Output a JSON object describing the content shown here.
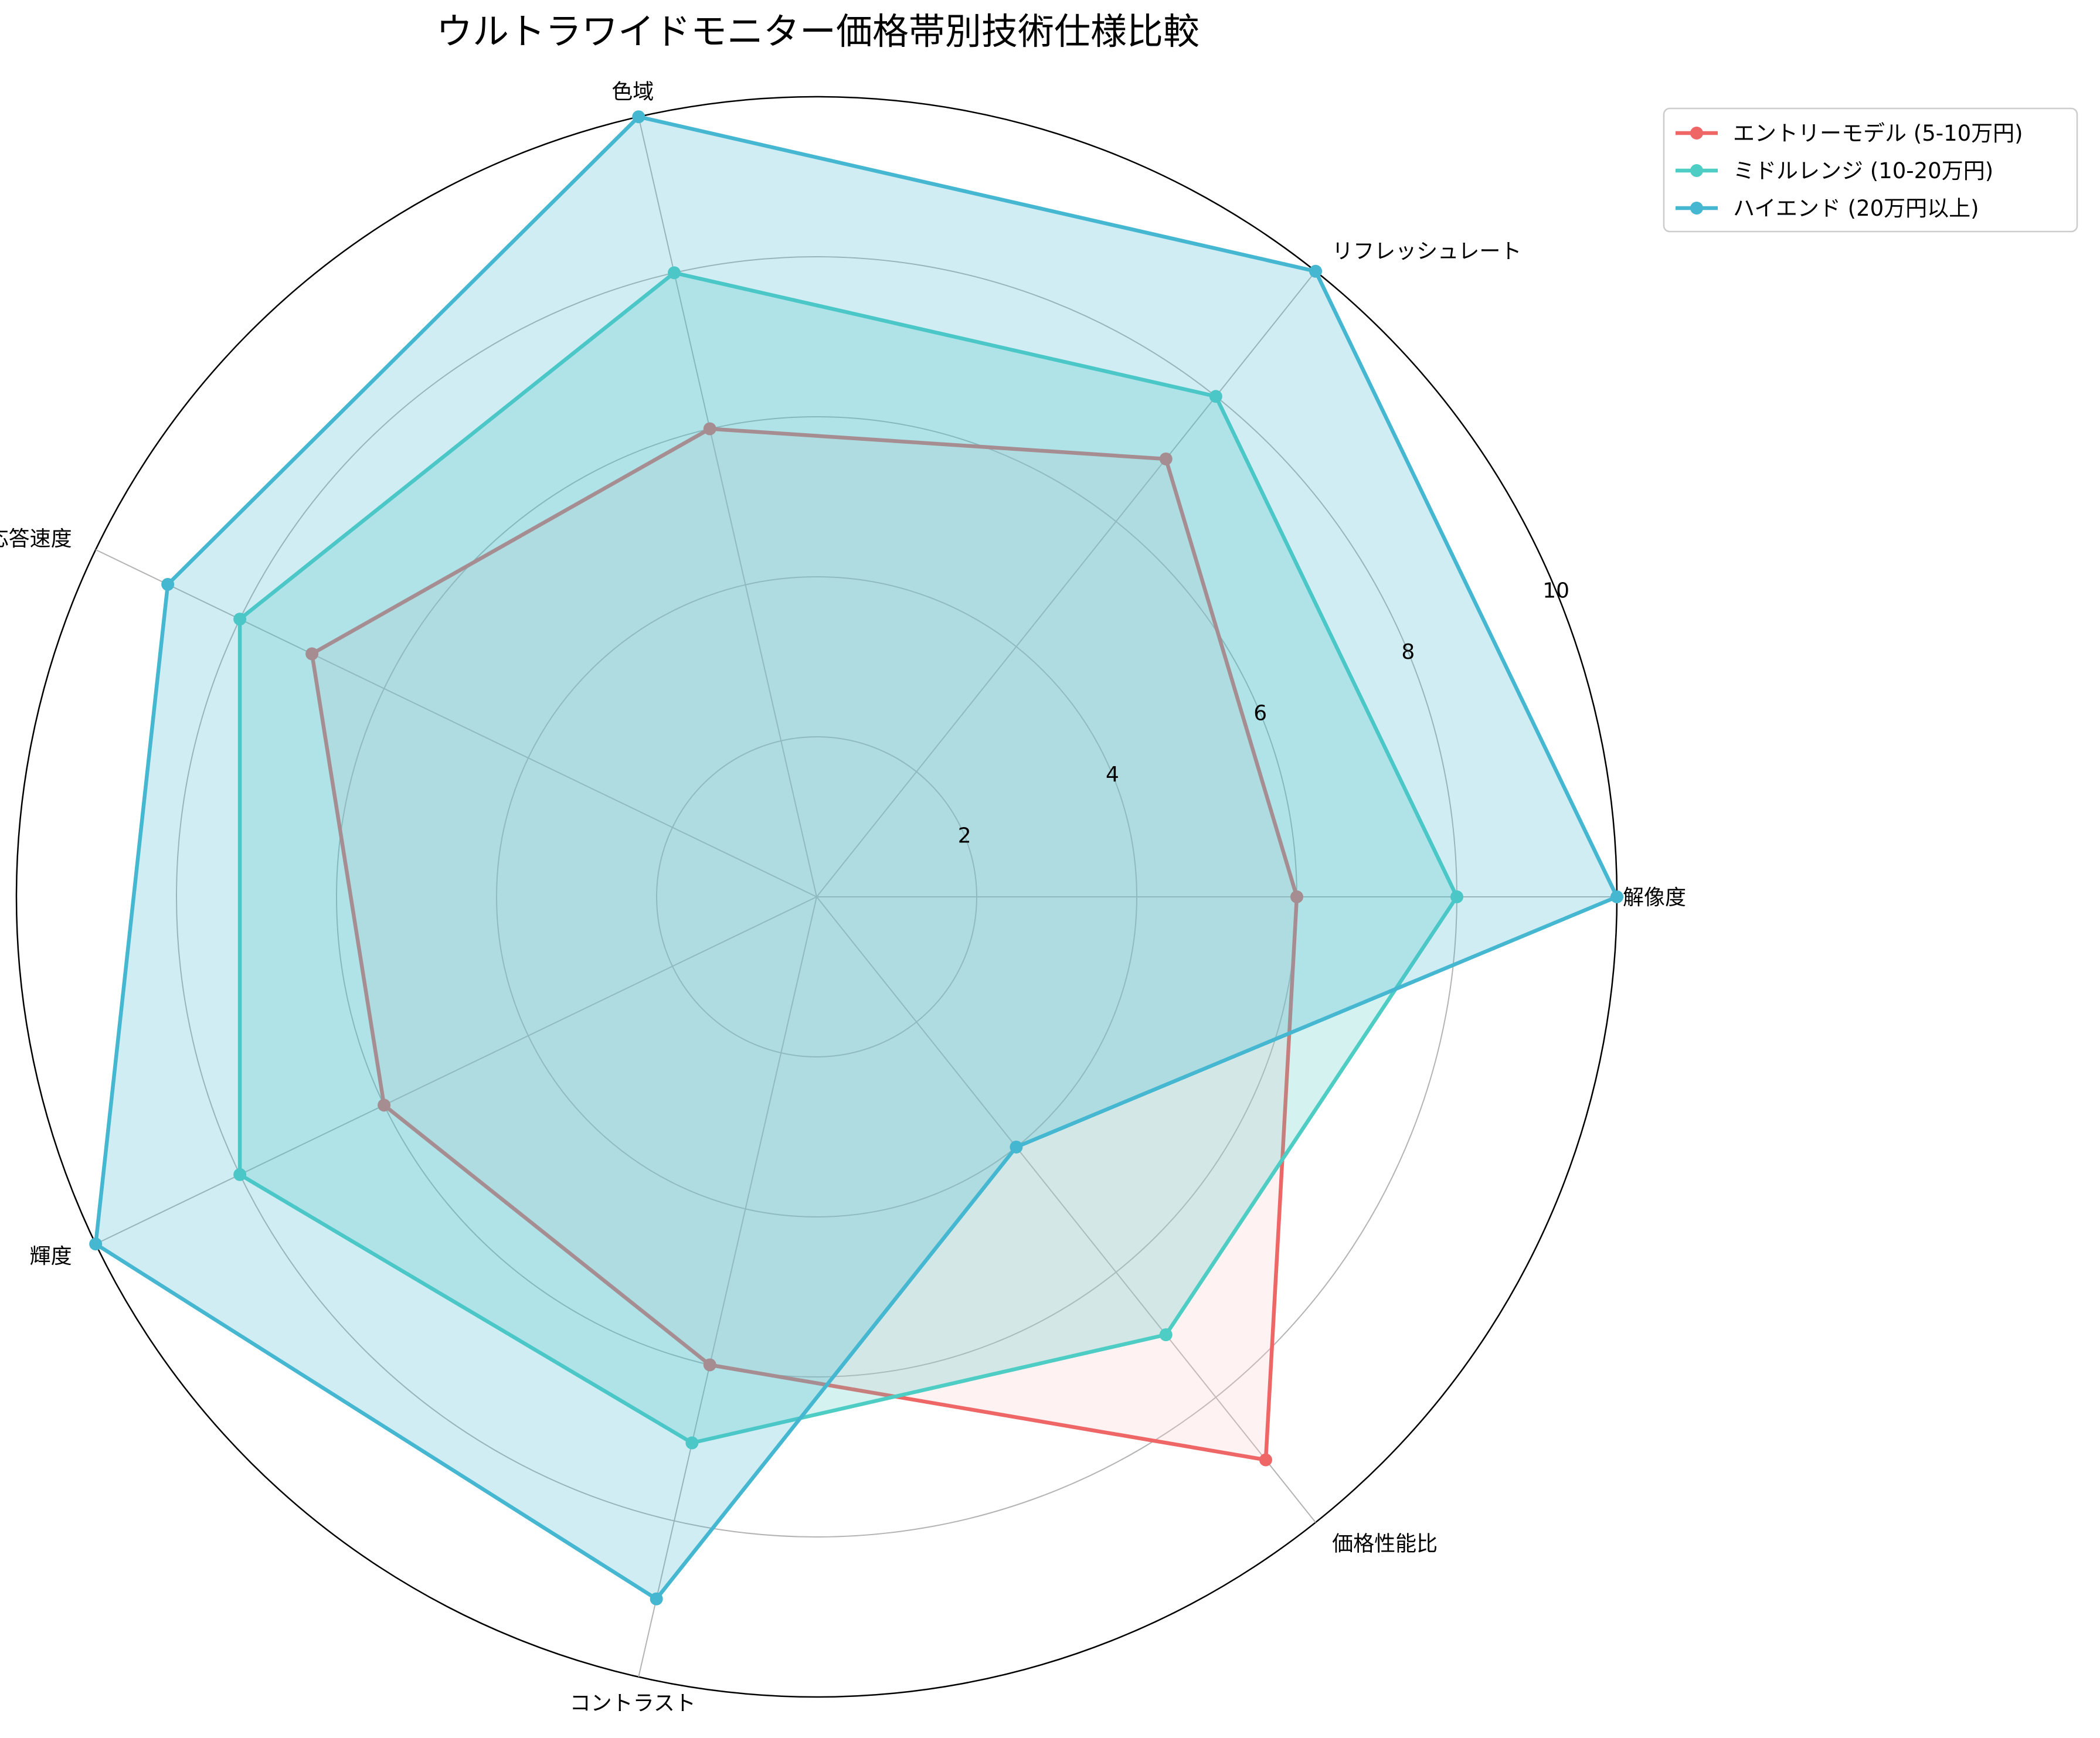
{
  "chart_data": {
    "type": "radar",
    "title": "ウルトラワイドモニター価格帯別技術仕様比較",
    "axes": [
      "解像度",
      "リフレッシュレート",
      "色域",
      "応答速度",
      "輝度",
      "コントラスト",
      "価格性能比"
    ],
    "rlim": [
      0,
      10
    ],
    "r_ticks": [
      "2",
      "4",
      "6",
      "8",
      "10"
    ],
    "grid": true,
    "legend_position": "top-right, outside plot",
    "series": [
      {
        "name": "エントリーモデル (5-10万円)",
        "color": "#ee6666",
        "fill": "#ffcccc",
        "values": [
          6,
          7,
          6,
          7,
          6,
          6,
          9
        ]
      },
      {
        "name": "ミドルレンジ (10-20万円)",
        "color": "#4ecdc4",
        "fill": "#4ecdc4",
        "values": [
          8,
          8,
          8,
          8,
          8,
          7,
          7
        ]
      },
      {
        "name": "ハイエンド (20万円以上)",
        "color": "#45b7d1",
        "fill": "#45b7d1",
        "values": [
          10,
          10,
          10,
          9,
          10,
          9,
          4
        ]
      }
    ]
  }
}
